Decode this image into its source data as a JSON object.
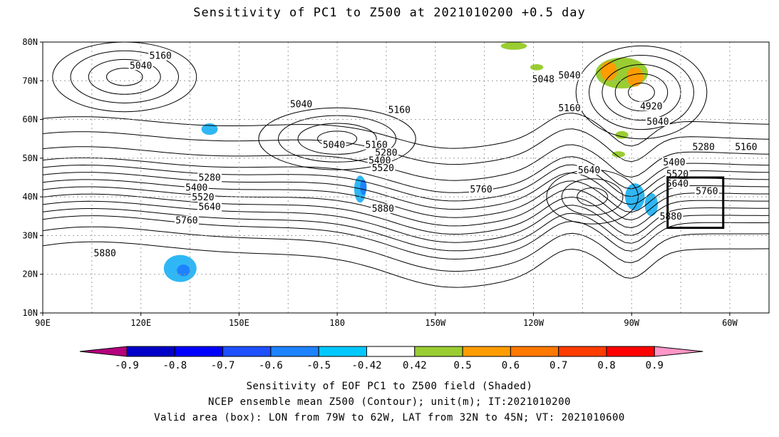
{
  "title": "Sensitivity of PC1 to Z500 at 2021010200 +0.5 day",
  "map": {
    "lat_ticks": [
      "80N",
      "70N",
      "60N",
      "50N",
      "40N",
      "30N",
      "20N",
      "10N"
    ],
    "lon_ticks": [
      "90E",
      "120E",
      "150E",
      "180",
      "150W",
      "120W",
      "90W",
      "60W"
    ],
    "lon_range": [
      90,
      312
    ],
    "lat_range": [
      10,
      80
    ],
    "valid_box": {
      "lon": [
        281,
        298
      ],
      "lat": [
        32,
        45
      ]
    },
    "contour_labels": [
      {
        "text": "5160",
        "lon": 126,
        "lat": 76
      },
      {
        "text": "5040",
        "lon": 120,
        "lat": 73.5
      },
      {
        "text": "5040",
        "lon": 169,
        "lat": 63.5
      },
      {
        "text": "5160",
        "lon": 199,
        "lat": 62
      },
      {
        "text": "5040",
        "lon": 179,
        "lat": 53
      },
      {
        "text": "5160",
        "lon": 192,
        "lat": 53
      },
      {
        "text": "5280",
        "lon": 195,
        "lat": 51
      },
      {
        "text": "5400",
        "lon": 193,
        "lat": 49
      },
      {
        "text": "5520",
        "lon": 194,
        "lat": 47
      },
      {
        "text": "5280",
        "lon": 141,
        "lat": 44.5
      },
      {
        "text": "5400",
        "lon": 137,
        "lat": 42
      },
      {
        "text": "5520",
        "lon": 139,
        "lat": 39.5
      },
      {
        "text": "5640",
        "lon": 141,
        "lat": 37
      },
      {
        "text": "5760",
        "lon": 134,
        "lat": 33.5
      },
      {
        "text": "5880",
        "lon": 194,
        "lat": 36.5
      },
      {
        "text": "5760",
        "lon": 224,
        "lat": 41.5
      },
      {
        "text": "5640",
        "lon": 257,
        "lat": 46.5
      },
      {
        "text": "5040",
        "lon": 251,
        "lat": 71
      },
      {
        "text": "5048",
        "lon": 243,
        "lat": 70
      },
      {
        "text": "5160",
        "lon": 251,
        "lat": 62.5
      },
      {
        "text": "4920",
        "lon": 276,
        "lat": 63
      },
      {
        "text": "5040",
        "lon": 278,
        "lat": 59
      },
      {
        "text": "5280",
        "lon": 292,
        "lat": 52.5
      },
      {
        "text": "5160",
        "lon": 305,
        "lat": 52.5
      },
      {
        "text": "5400",
        "lon": 283,
        "lat": 48.5
      },
      {
        "text": "5520",
        "lon": 284,
        "lat": 45.5
      },
      {
        "text": "5640",
        "lon": 284,
        "lat": 43
      },
      {
        "text": "5760",
        "lon": 293,
        "lat": 41
      },
      {
        "text": "5880",
        "lon": 282,
        "lat": 34.5
      },
      {
        "text": "5880",
        "lon": 109,
        "lat": 25
      }
    ],
    "shading": [
      {
        "value": -0.5,
        "color": "#2fb7f5",
        "lon": 132,
        "lat": 21.5,
        "rx": 5,
        "ry": 3.5
      },
      {
        "value": -0.6,
        "color": "#1e82ff",
        "lon": 133,
        "lat": 21,
        "rx": 2,
        "ry": 1.5
      },
      {
        "value": -0.5,
        "color": "#2fb7f5",
        "lon": 141,
        "lat": 57.5,
        "rx": 2.5,
        "ry": 1.5
      },
      {
        "value": -0.5,
        "color": "#2fb7f5",
        "lon": 187,
        "lat": 42,
        "rx": 1.8,
        "ry": 3.5
      },
      {
        "value": -0.6,
        "color": "#1e82ff",
        "lon": 188,
        "lat": 42.5,
        "rx": 1,
        "ry": 2
      },
      {
        "value": -0.5,
        "color": "#2fb7f5",
        "lon": 271,
        "lat": 40,
        "rx": 3,
        "ry": 3.5
      },
      {
        "value": -0.5,
        "color": "#2fb7f5",
        "lon": 276,
        "lat": 38,
        "rx": 2,
        "ry": 3
      },
      {
        "value": 0.5,
        "color": "#9acd32",
        "lon": 267,
        "lat": 72,
        "rx": 8,
        "ry": 4
      },
      {
        "value": 0.6,
        "color": "#ff9c00",
        "lon": 263,
        "lat": 72.5,
        "rx": 2.5,
        "ry": 2.5
      },
      {
        "value": 0.6,
        "color": "#ff9c00",
        "lon": 271,
        "lat": 71,
        "rx": 2.5,
        "ry": 2.5
      },
      {
        "value": 0.5,
        "color": "#9acd32",
        "lon": 234,
        "lat": 79,
        "rx": 4,
        "ry": 1
      },
      {
        "value": 0.5,
        "color": "#9acd32",
        "lon": 241,
        "lat": 73.5,
        "rx": 2,
        "ry": 0.8
      },
      {
        "value": 0.5,
        "color": "#9acd32",
        "lon": 267,
        "lat": 56,
        "rx": 2,
        "ry": 1
      },
      {
        "value": 0.5,
        "color": "#9acd32",
        "lon": 266,
        "lat": 51,
        "rx": 2,
        "ry": 0.8
      }
    ]
  },
  "colorbar": {
    "colors": [
      "#b4007d",
      "#0000c8",
      "#0000ff",
      "#1e50ff",
      "#1e82ff",
      "#00c8ff",
      "#ffffff",
      "#9acd32",
      "#ff9c00",
      "#ff7800",
      "#ff3c00",
      "#ff0000",
      "#ff96c8"
    ],
    "labels": [
      "-0.9",
      "-0.8",
      "-0.7",
      "-0.6",
      "-0.5",
      "-0.42",
      "0.42",
      "0.5",
      "0.6",
      "0.7",
      "0.8",
      "0.9"
    ]
  },
  "captions": {
    "line1": "Sensitivity of EOF PC1 to Z500 field (Shaded)",
    "line2": "NCEP ensemble mean Z500 (Contour); unit(m); IT:2021010200",
    "line3": "Valid area (box): LON from 79W to 62W, LAT from 32N to 45N; VT: 2021010600"
  }
}
